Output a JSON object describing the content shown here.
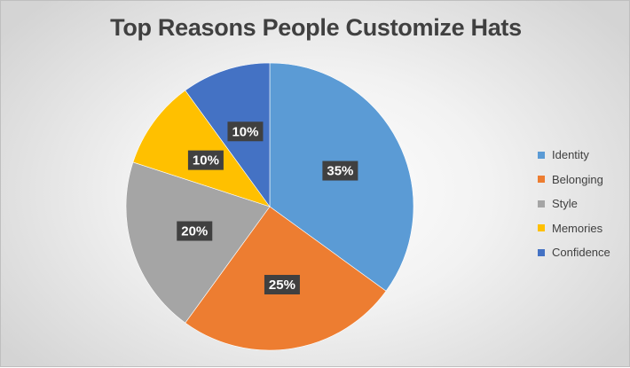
{
  "chart_data": {
    "type": "pie",
    "title": "Top Reasons People Customize Hats",
    "categories": [
      "Identity",
      "Belonging",
      "Style",
      "Memories",
      "Confidence"
    ],
    "values": [
      35,
      25,
      20,
      10,
      10
    ],
    "data_labels": [
      "35%",
      "25%",
      "20%",
      "10%",
      "10%"
    ],
    "colors": [
      "#5b9bd5",
      "#ed7d31",
      "#a5a5a5",
      "#ffc000",
      "#4472c4"
    ],
    "start_angle_deg": 0,
    "direction": "clockwise",
    "legend": "right"
  }
}
